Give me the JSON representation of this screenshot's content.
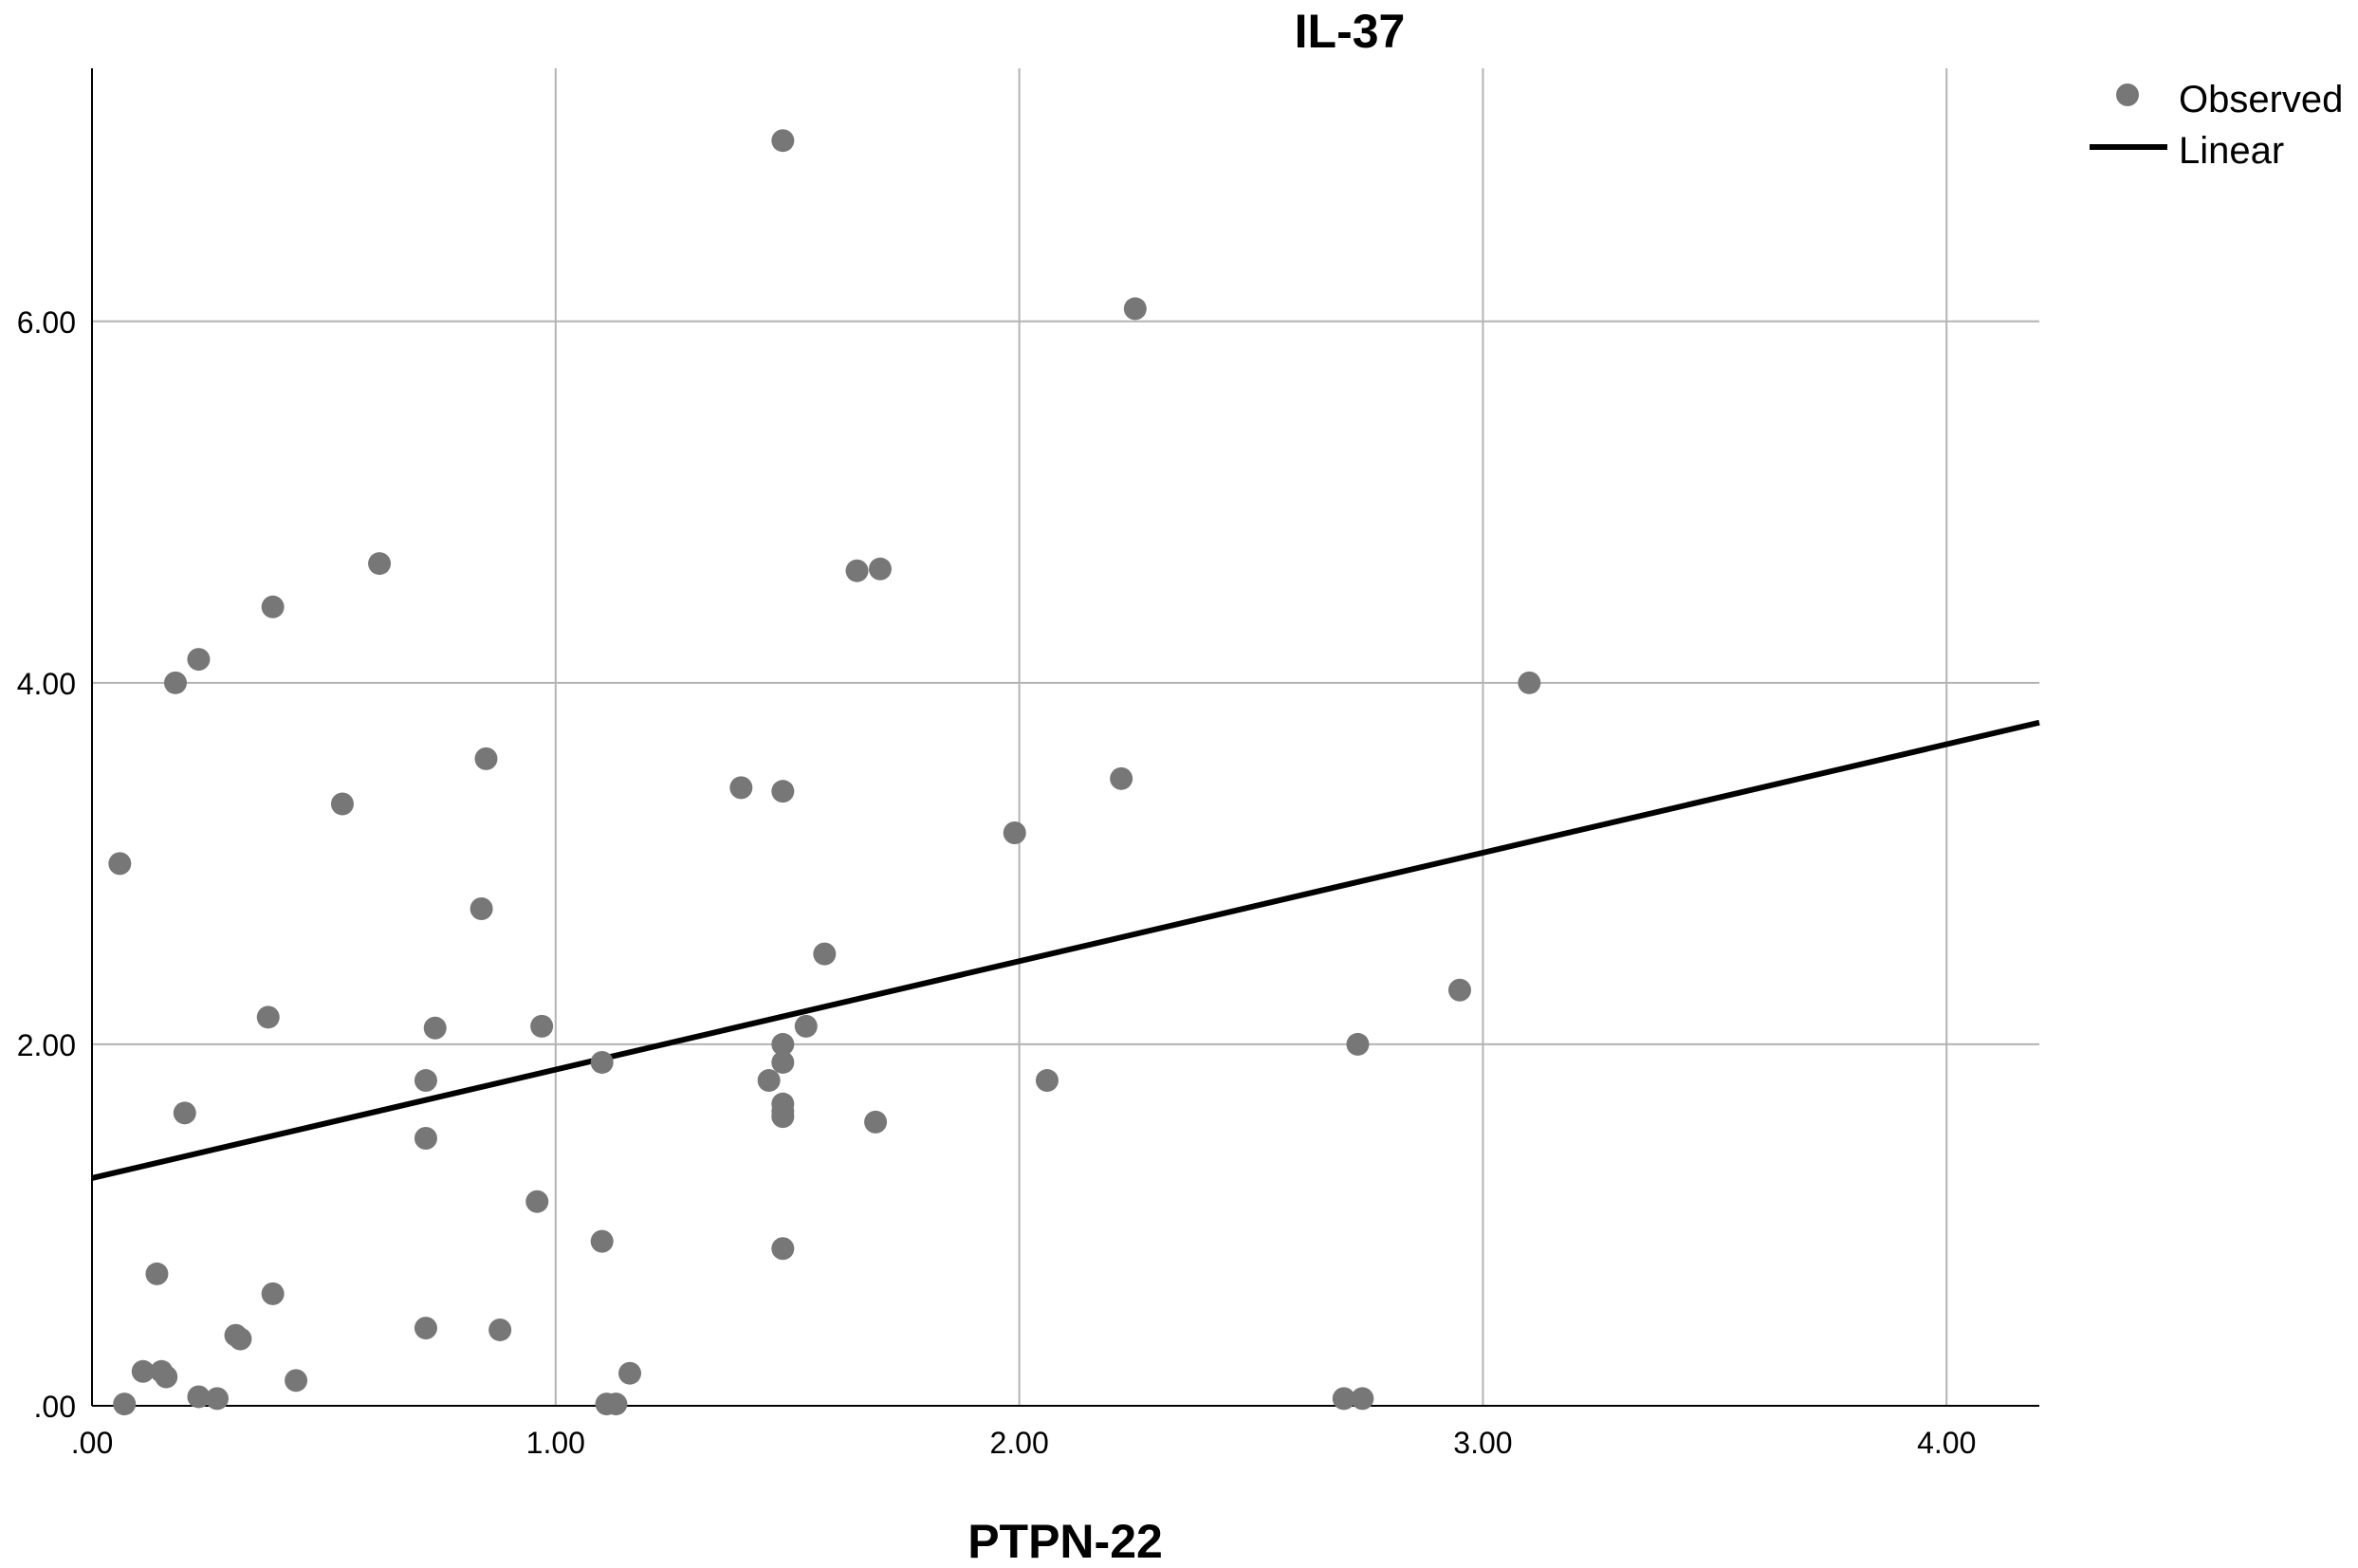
{
  "chart_data": {
    "type": "scatter",
    "title": "IL-37",
    "xlabel": "PTPN-22",
    "ylabel": "",
    "xlim": [
      0,
      4.2
    ],
    "ylim": [
      0,
      7.4
    ],
    "grid": true,
    "x_ticks": [
      0,
      1,
      2,
      3,
      4
    ],
    "x_tick_labels": [
      ".00",
      "1.00",
      "2.00",
      "3.00",
      "4.00"
    ],
    "y_ticks": [
      0,
      2,
      4,
      6
    ],
    "y_tick_labels": [
      ".00",
      "2.00",
      "4.00",
      "6.00"
    ],
    "legend": {
      "placement": "top-right",
      "entries": [
        {
          "label": "Observed",
          "symbol": "circle",
          "color": "#777777"
        },
        {
          "label": "Linear",
          "symbol": "line",
          "color": "#000000"
        }
      ]
    },
    "series": [
      {
        "name": "Observed",
        "color": "#777777",
        "points": [
          [
            0.06,
            3.0
          ],
          [
            0.07,
            0.01
          ],
          [
            0.11,
            0.19
          ],
          [
            0.14,
            0.73
          ],
          [
            0.15,
            0.19
          ],
          [
            0.16,
            0.16
          ],
          [
            0.18,
            4.0
          ],
          [
            0.2,
            1.62
          ],
          [
            0.23,
            4.13
          ],
          [
            0.23,
            0.05
          ],
          [
            0.27,
            0.04
          ],
          [
            0.31,
            0.39
          ],
          [
            0.32,
            0.37
          ],
          [
            0.38,
            2.15
          ],
          [
            0.39,
            0.62
          ],
          [
            0.39,
            4.42
          ],
          [
            0.44,
            0.14
          ],
          [
            0.54,
            3.33
          ],
          [
            0.62,
            4.66
          ],
          [
            0.72,
            1.8
          ],
          [
            0.72,
            1.48
          ],
          [
            0.72,
            0.43
          ],
          [
            0.74,
            2.09
          ],
          [
            0.84,
            2.75
          ],
          [
            0.85,
            3.58
          ],
          [
            0.88,
            0.42
          ],
          [
            0.96,
            1.13
          ],
          [
            0.97,
            2.1
          ],
          [
            1.1,
            0.91
          ],
          [
            1.1,
            1.9
          ],
          [
            1.11,
            0.01
          ],
          [
            1.13,
            0.01
          ],
          [
            1.16,
            0.18
          ],
          [
            1.4,
            3.42
          ],
          [
            1.46,
            1.8
          ],
          [
            1.49,
            7.0
          ],
          [
            1.49,
            3.4
          ],
          [
            1.49,
            2.0
          ],
          [
            1.49,
            1.9
          ],
          [
            1.49,
            1.67
          ],
          [
            1.49,
            1.63
          ],
          [
            1.49,
            1.6
          ],
          [
            1.49,
            0.87
          ],
          [
            1.54,
            2.1
          ],
          [
            1.58,
            2.5
          ],
          [
            1.65,
            4.62
          ],
          [
            1.7,
            4.63
          ],
          [
            1.69,
            1.57
          ],
          [
            1.99,
            3.17
          ],
          [
            2.06,
            1.8
          ],
          [
            2.22,
            3.47
          ],
          [
            2.25,
            6.07
          ],
          [
            2.7,
            0.04
          ],
          [
            2.73,
            2.0
          ],
          [
            2.74,
            0.04
          ],
          [
            2.95,
            2.3
          ],
          [
            3.1,
            4.0
          ]
        ]
      },
      {
        "name": "Linear",
        "type": "line",
        "color": "#000000",
        "points": [
          [
            0,
            1.26
          ],
          [
            4.2,
            3.78
          ]
        ]
      }
    ]
  }
}
